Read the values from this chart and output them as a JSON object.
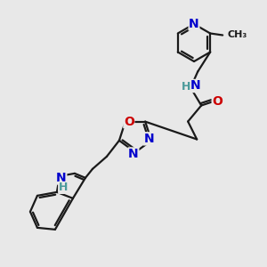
{
  "bg_color": "#e8e8e8",
  "bond_color": "#1a1a1a",
  "bond_lw": 1.6,
  "atom_colors": {
    "N": "#0000cc",
    "O": "#cc0000",
    "H": "#4a9a9a",
    "C": "#1a1a1a"
  },
  "font_size_atom": 9.5,
  "fig_size": [
    3.0,
    3.0
  ],
  "dpi": 100
}
